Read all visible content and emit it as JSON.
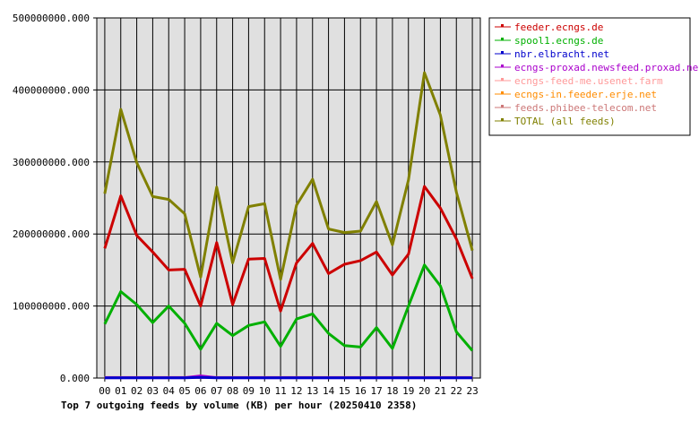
{
  "chart_data": {
    "type": "line",
    "title": "Top 7 outgoing feeds by volume (KB) per hour (20250410 2358)",
    "x": [
      "00",
      "01",
      "02",
      "03",
      "04",
      "05",
      "06",
      "07",
      "08",
      "09",
      "10",
      "11",
      "12",
      "13",
      "14",
      "15",
      "16",
      "17",
      "18",
      "19",
      "20",
      "21",
      "22",
      "23"
    ],
    "y_ticks": [
      "0.000",
      "100000000.000",
      "200000000.000",
      "300000000.000",
      "400000000.000",
      "500000000.000"
    ],
    "ylim": [
      0,
      500000000
    ],
    "grid": true,
    "legend_position": "right",
    "series": [
      {
        "name": "feeder.ecngs.de",
        "color": "#cc0000",
        "values": [
          180000000,
          253000000,
          198000000,
          175000000,
          150000000,
          151000000,
          100000000,
          188000000,
          102000000,
          165000000,
          166000000,
          93000000,
          160000000,
          187000000,
          145000000,
          158000000,
          163000000,
          175000000,
          143000000,
          172000000,
          266000000,
          236000000,
          193000000,
          138000000
        ]
      },
      {
        "name": "spool1.ecngs.de",
        "color": "#00b000",
        "values": [
          75000000,
          120000000,
          102000000,
          77000000,
          100000000,
          76000000,
          40000000,
          76000000,
          59000000,
          73000000,
          78000000,
          44000000,
          82000000,
          89000000,
          62000000,
          45000000,
          43000000,
          70000000,
          41000000,
          100000000,
          157000000,
          128000000,
          64000000,
          38000000
        ]
      },
      {
        "name": "nbr.elbracht.net",
        "color": "#0000cc",
        "values": [
          300000,
          300000,
          300000,
          300000,
          300000,
          300000,
          1000000,
          300000,
          300000,
          300000,
          300000,
          300000,
          300000,
          300000,
          300000,
          300000,
          300000,
          300000,
          300000,
          300000,
          300000,
          300000,
          300000,
          300000
        ]
      },
      {
        "name": "ecngs-proxad.newsfeed.proxad.net",
        "color": "#aa00cc",
        "values": [
          500000,
          500000,
          500000,
          500000,
          500000,
          500000,
          3000000,
          500000,
          500000,
          500000,
          500000,
          500000,
          500000,
          500000,
          500000,
          500000,
          500000,
          500000,
          500000,
          500000,
          500000,
          500000,
          500000,
          500000
        ]
      },
      {
        "name": "ecngs-feed-me.usenet.farm",
        "color": "#ff9999",
        "values": [
          800000,
          800000,
          800000,
          800000,
          800000,
          800000,
          800000,
          800000,
          800000,
          800000,
          800000,
          800000,
          800000,
          800000,
          800000,
          800000,
          800000,
          800000,
          800000,
          800000,
          800000,
          800000,
          800000,
          800000
        ]
      },
      {
        "name": "ecngs-in.feeder.erje.net",
        "color": "#ff8c00",
        "values": [
          600000,
          600000,
          600000,
          600000,
          600000,
          600000,
          600000,
          600000,
          600000,
          600000,
          600000,
          600000,
          600000,
          600000,
          600000,
          600000,
          600000,
          600000,
          600000,
          600000,
          600000,
          600000,
          600000,
          600000
        ]
      },
      {
        "name": "feeds.phibee-telecom.net",
        "color": "#cc7777",
        "values": [
          700000,
          700000,
          700000,
          700000,
          700000,
          700000,
          700000,
          700000,
          700000,
          700000,
          700000,
          700000,
          700000,
          700000,
          700000,
          700000,
          700000,
          700000,
          700000,
          700000,
          700000,
          700000,
          700000,
          700000
        ]
      },
      {
        "name": "TOTAL (all feeds)",
        "color": "#808000",
        "values": [
          256000000,
          373000000,
          299000000,
          252000000,
          248000000,
          228000000,
          140000000,
          265000000,
          160000000,
          238000000,
          242000000,
          137000000,
          240000000,
          276000000,
          207000000,
          202000000,
          204000000,
          245000000,
          185000000,
          275000000,
          424000000,
          365000000,
          258000000,
          177000000
        ]
      }
    ]
  }
}
